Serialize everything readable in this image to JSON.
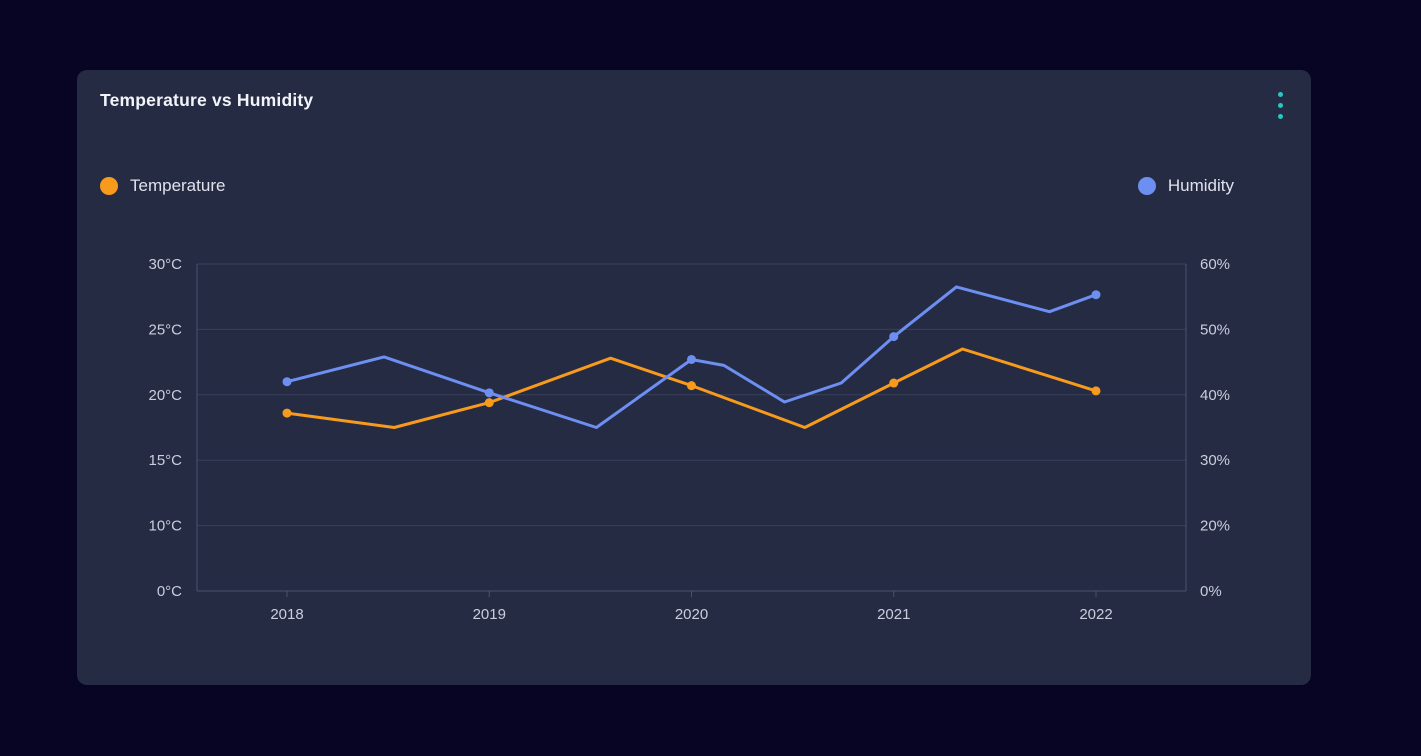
{
  "page": {
    "background_color": "#070523"
  },
  "card": {
    "title": "Temperature vs Humidity",
    "background_color": "#262b44",
    "menu": {
      "icon": "kebab-vertical-dots",
      "color": "#27c7c3"
    }
  },
  "legend": {
    "items": [
      {
        "label": "Temperature",
        "color": "#f89b1c",
        "align": "left"
      },
      {
        "label": "Humidity",
        "color": "#6d8ff2",
        "align": "right"
      }
    ]
  },
  "chart_data": {
    "type": "line",
    "title": "Temperature vs Humidity",
    "legend_position": "top-split",
    "grid": {
      "horizontal": true,
      "vertical": false,
      "color": "#3a4059",
      "border_color": "#4b5170"
    },
    "x": {
      "range": [
        2018,
        2022
      ],
      "tick_labels": [
        "2018",
        "2019",
        "2020",
        "2021",
        "2022"
      ]
    },
    "y_left": {
      "unit": "°C",
      "tick_labels": [
        "30°C",
        "25°C",
        "20°C",
        "15°C",
        "10°C",
        "0°C"
      ],
      "tick_values": [
        30,
        25,
        20,
        15,
        10,
        0
      ]
    },
    "y_right": {
      "unit": "%",
      "tick_labels": [
        "60%",
        "50%",
        "40%",
        "30%",
        "20%",
        "0%"
      ],
      "tick_values": [
        60,
        50,
        40,
        30,
        20,
        0
      ]
    },
    "series": [
      {
        "name": "Temperature",
        "axis": "left",
        "color": "#f89b1c",
        "marker_years": [
          2018,
          2019,
          2020,
          2021,
          2022
        ],
        "points": [
          {
            "x": 2018.0,
            "y": 18.6
          },
          {
            "x": 2018.53,
            "y": 17.5
          },
          {
            "x": 2019.0,
            "y": 19.4
          },
          {
            "x": 2019.6,
            "y": 22.8
          },
          {
            "x": 2020.0,
            "y": 20.7
          },
          {
            "x": 2020.56,
            "y": 17.5
          },
          {
            "x": 2021.0,
            "y": 20.9
          },
          {
            "x": 2021.34,
            "y": 23.5
          },
          {
            "x": 2022.0,
            "y": 20.3
          }
        ]
      },
      {
        "name": "Humidity",
        "axis": "right",
        "color": "#6d8ff2",
        "marker_years": [
          2018,
          2019,
          2020,
          2021,
          2022
        ],
        "points": [
          {
            "x": 2018.0,
            "y": 42.0
          },
          {
            "x": 2018.48,
            "y": 45.8
          },
          {
            "x": 2019.0,
            "y": 40.3
          },
          {
            "x": 2019.53,
            "y": 35.0
          },
          {
            "x": 2020.0,
            "y": 45.4
          },
          {
            "x": 2020.16,
            "y": 44.5
          },
          {
            "x": 2020.46,
            "y": 38.9
          },
          {
            "x": 2020.74,
            "y": 41.8
          },
          {
            "x": 2021.0,
            "y": 48.9
          },
          {
            "x": 2021.31,
            "y": 56.5
          },
          {
            "x": 2021.77,
            "y": 52.7
          },
          {
            "x": 2022.0,
            "y": 55.3
          }
        ]
      }
    ]
  }
}
